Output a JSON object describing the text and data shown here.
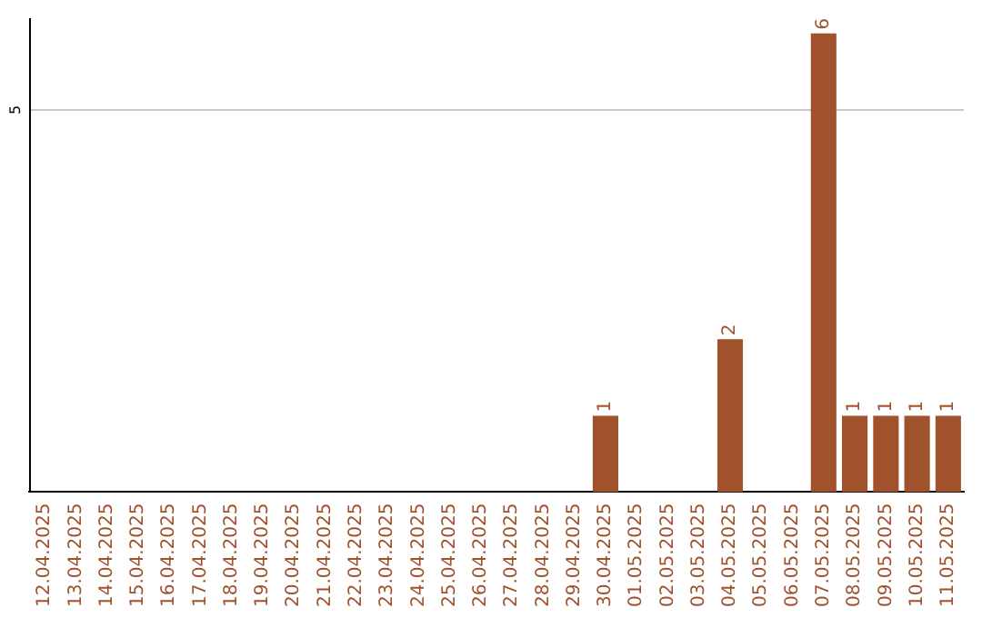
{
  "chart_data": {
    "type": "bar",
    "categories": [
      "12.04.2025",
      "13.04.2025",
      "14.04.2025",
      "15.04.2025",
      "16.04.2025",
      "17.04.2025",
      "18.04.2025",
      "19.04.2025",
      "20.04.2025",
      "21.04.2025",
      "22.04.2025",
      "23.04.2025",
      "24.04.2025",
      "25.04.2025",
      "26.04.2025",
      "27.04.2025",
      "28.04.2025",
      "29.04.2025",
      "30.04.2025",
      "01.05.2025",
      "02.05.2025",
      "03.05.2025",
      "04.05.2025",
      "05.05.2025",
      "06.05.2025",
      "07.05.2025",
      "08.05.2025",
      "09.05.2025",
      "10.05.2025",
      "11.05.2025"
    ],
    "values": [
      null,
      null,
      null,
      null,
      null,
      null,
      null,
      null,
      null,
      null,
      null,
      null,
      null,
      null,
      null,
      null,
      null,
      null,
      1,
      null,
      null,
      null,
      2,
      null,
      null,
      6,
      1,
      1,
      1,
      1
    ],
    "data_labels": true,
    "color": "#a0522d",
    "ylim": [
      0,
      6.2
    ],
    "ref_lines": [
      {
        "axis": "y",
        "value": 5,
        "label": "5",
        "color": "#c8c8c8"
      }
    ],
    "legend": false
  }
}
